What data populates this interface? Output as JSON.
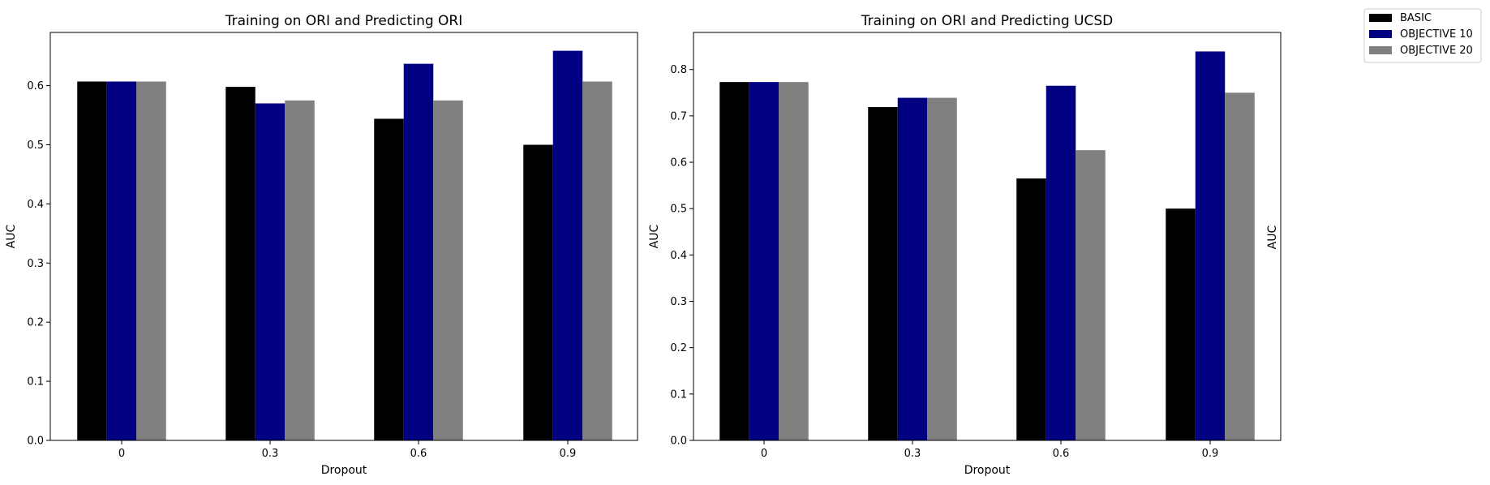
{
  "legend": {
    "placement": "top-right",
    "entries": [
      {
        "label": "BASIC",
        "color": "#000000"
      },
      {
        "label": "OBJECTIVE 10",
        "color": "#000080"
      },
      {
        "label": "OBJECTIVE 20",
        "color": "#808080"
      }
    ]
  },
  "chart_data": [
    {
      "type": "bar",
      "title": "Training on ORI and Predicting ORI",
      "xlabel": "Dropout",
      "ylabel": "AUC",
      "categories": [
        "0",
        "0.3",
        "0.6",
        "0.9"
      ],
      "ylim": [
        0,
        0.69
      ],
      "yticks": [
        "0.0",
        "0.1",
        "0.2",
        "0.3",
        "0.4",
        "0.5",
        "0.6"
      ],
      "grid": false,
      "series": [
        {
          "name": "BASIC",
          "color": "#000000",
          "values": [
            0.607,
            0.598,
            0.544,
            0.5
          ]
        },
        {
          "name": "OBJECTIVE 10",
          "color": "#000080",
          "values": [
            0.607,
            0.57,
            0.637,
            0.659
          ]
        },
        {
          "name": "OBJECTIVE 20",
          "color": "#808080",
          "values": [
            0.607,
            0.575,
            0.575,
            0.607
          ]
        }
      ]
    },
    {
      "type": "bar",
      "title": "Training on ORI and Predicting UCSD",
      "xlabel": "Dropout",
      "ylabel": "AUC",
      "secondary_ylabel": "AUC",
      "categories": [
        "0",
        "0.3",
        "0.6",
        "0.9"
      ],
      "ylim": [
        0,
        0.88
      ],
      "yticks": [
        "0.0",
        "0.1",
        "0.2",
        "0.3",
        "0.4",
        "0.5",
        "0.6",
        "0.7",
        "0.8"
      ],
      "grid": false,
      "series": [
        {
          "name": "BASIC",
          "color": "#000000",
          "values": [
            0.773,
            0.719,
            0.565,
            0.5
          ]
        },
        {
          "name": "OBJECTIVE 10",
          "color": "#000080",
          "values": [
            0.773,
            0.739,
            0.765,
            0.839
          ]
        },
        {
          "name": "OBJECTIVE 20",
          "color": "#808080",
          "values": [
            0.773,
            0.739,
            0.626,
            0.75
          ]
        }
      ]
    }
  ]
}
